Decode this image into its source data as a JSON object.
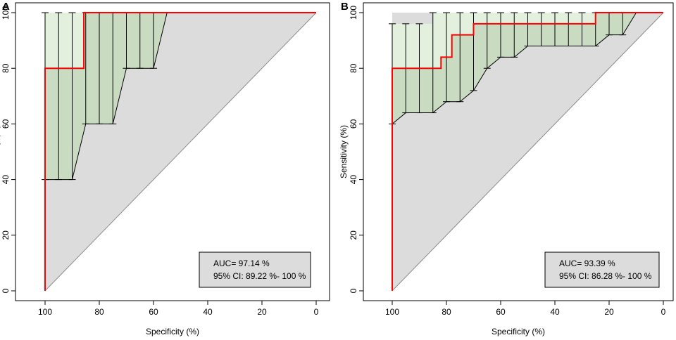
{
  "chart_data": [
    {
      "type": "line",
      "panel_label": "A",
      "xlabel": "Specificity (%)",
      "ylabel": "Sensitivity (%)",
      "xlim": [
        100,
        0
      ],
      "ylim": [
        0,
        100
      ],
      "x_ticks": [
        "100",
        "80",
        "60",
        "40",
        "20",
        "0"
      ],
      "y_ticks": [
        "0",
        "20",
        "40",
        "60",
        "80",
        "100"
      ],
      "roc": {
        "x": [
          100,
          100,
          85.7,
          85.7,
          0
        ],
        "y": [
          0,
          80,
          80,
          100,
          100
        ]
      },
      "ci_specificity": [
        100,
        95,
        90,
        85,
        80,
        75,
        70,
        65,
        60,
        55
      ],
      "ci_upper": [
        100,
        100,
        100,
        100,
        100,
        100,
        100,
        100,
        100,
        100
      ],
      "ci_lower": [
        40,
        40,
        40,
        60,
        60,
        60,
        80,
        80,
        80,
        100
      ],
      "auc_line": "AUC= 97.14 %",
      "ci_line": "95% CI: 89.22 %- 100 %",
      "colors": {
        "roc": "#ff0000",
        "ci_fill": "#e3f0dd",
        "ci_fill_inner": "#c9dcc1",
        "plot_bg": "#dcdcdc"
      }
    },
    {
      "type": "line",
      "panel_label": "B",
      "xlabel": "Specificity (%)",
      "ylabel": "Sensitivity (%)",
      "xlim": [
        100,
        0
      ],
      "ylim": [
        0,
        100
      ],
      "x_ticks": [
        "100",
        "80",
        "60",
        "40",
        "20",
        "0"
      ],
      "y_ticks": [
        "0",
        "20",
        "40",
        "60",
        "80",
        "100"
      ],
      "roc": {
        "x": [
          100,
          100,
          82,
          82,
          78,
          78,
          70,
          70,
          25,
          25,
          0
        ],
        "y": [
          0,
          80,
          80,
          84,
          84,
          92,
          92,
          96,
          96,
          100,
          100
        ]
      },
      "ci_specificity": [
        100,
        95,
        90,
        85,
        80,
        75,
        70,
        65,
        60,
        55,
        50,
        45,
        40,
        35,
        30,
        25,
        20,
        15,
        10
      ],
      "ci_upper": [
        96,
        96,
        96,
        100,
        100,
        100,
        100,
        100,
        100,
        100,
        100,
        100,
        100,
        100,
        100,
        100,
        100,
        100,
        100
      ],
      "ci_lower": [
        60,
        64,
        64,
        64,
        68,
        68,
        72,
        80,
        84,
        84,
        88,
        88,
        88,
        88,
        88,
        88,
        92,
        92,
        100
      ],
      "auc_line": "AUC= 93.39 %",
      "ci_line": "95% CI: 86.28 %- 100 %",
      "colors": {
        "roc": "#ff0000",
        "ci_fill": "#e3f0dd",
        "ci_fill_inner": "#c9dcc1",
        "plot_bg": "#dcdcdc"
      }
    }
  ]
}
